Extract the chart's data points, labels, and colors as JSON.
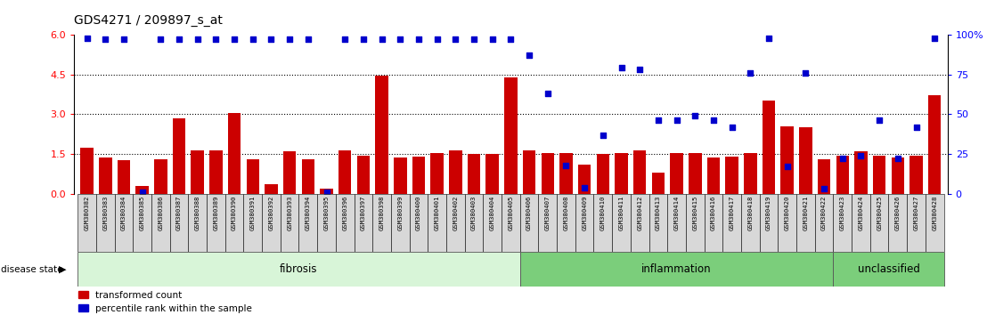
{
  "title": "GDS4271 / 209897_s_at",
  "samples": [
    "GSM380382",
    "GSM380383",
    "GSM380384",
    "GSM380385",
    "GSM380386",
    "GSM380387",
    "GSM380388",
    "GSM380389",
    "GSM380390",
    "GSM380391",
    "GSM380392",
    "GSM380393",
    "GSM380394",
    "GSM380395",
    "GSM380396",
    "GSM380397",
    "GSM380398",
    "GSM380399",
    "GSM380400",
    "GSM380401",
    "GSM380402",
    "GSM380403",
    "GSM380404",
    "GSM380405",
    "GSM380406",
    "GSM380407",
    "GSM380408",
    "GSM380409",
    "GSM380410",
    "GSM380411",
    "GSM380412",
    "GSM380413",
    "GSM380414",
    "GSM380415",
    "GSM380416",
    "GSM380417",
    "GSM380418",
    "GSM380419",
    "GSM380420",
    "GSM380421",
    "GSM380422",
    "GSM380423",
    "GSM380424",
    "GSM380425",
    "GSM380426",
    "GSM380427",
    "GSM380428"
  ],
  "bar_values": [
    1.75,
    1.35,
    1.25,
    0.3,
    1.3,
    2.85,
    1.65,
    1.65,
    3.05,
    1.3,
    0.35,
    1.6,
    1.3,
    0.2,
    1.65,
    1.45,
    4.45,
    1.35,
    1.4,
    1.55,
    1.65,
    1.5,
    1.5,
    4.4,
    1.65,
    1.55,
    1.55,
    1.1,
    1.5,
    1.55,
    1.65,
    0.8,
    1.55,
    1.55,
    1.35,
    1.4,
    1.55,
    3.5,
    2.55,
    2.5,
    1.3,
    1.45,
    1.6,
    1.45,
    1.35,
    1.45,
    3.7
  ],
  "dot_pct": [
    98,
    97,
    97,
    1,
    97,
    97,
    97,
    97,
    97,
    97,
    97,
    97,
    97,
    1,
    97,
    97,
    97,
    97,
    97,
    97,
    97,
    97,
    97,
    97,
    87,
    63,
    18,
    4,
    37,
    79,
    78,
    46,
    46,
    49,
    46,
    42,
    76,
    98,
    17,
    76,
    3,
    22,
    24,
    46,
    22,
    42,
    98
  ],
  "groups": [
    {
      "label": "fibrosis",
      "start": 0,
      "end": 23
    },
    {
      "label": "inflammation",
      "start": 24,
      "end": 40
    },
    {
      "label": "unclassified",
      "start": 41,
      "end": 46
    }
  ],
  "group_colors": {
    "fibrosis": "#d8f5d8",
    "inflammation": "#7bce7b",
    "unclassified": "#7bce7b"
  },
  "ylim_left": [
    0,
    6
  ],
  "yticks_left": [
    0,
    1.5,
    3.0,
    4.5,
    6
  ],
  "yticks_right": [
    0,
    25,
    50,
    75,
    100
  ],
  "bar_color": "#cc0000",
  "dot_color": "#0000cc",
  "label_bar": "transformed count",
  "label_dot": "percentile rank within the sample"
}
